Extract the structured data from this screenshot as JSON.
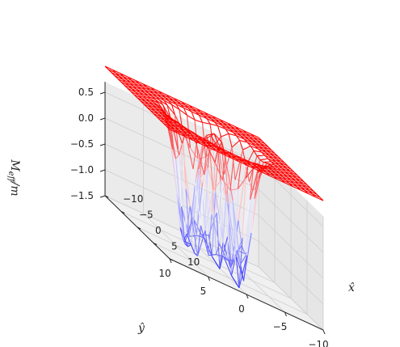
{
  "chart_data": {
    "type": "surface-3d-wireframe",
    "title": "",
    "xlabel": "x̂",
    "ylabel": "ŷ",
    "zlabel": "M_eff / m",
    "x_range": [
      -10,
      10
    ],
    "y_range": [
      -10,
      10
    ],
    "z_range": [
      -1.5,
      0.75
    ],
    "x_ticks": [
      -10,
      -5,
      0,
      5,
      10
    ],
    "y_ticks": [
      -10,
      -5,
      0,
      5,
      10
    ],
    "z_ticks": [
      -1.5,
      -1.0,
      -0.5,
      0.0,
      0.5
    ],
    "x_tick_labels": [
      "−10",
      "−5",
      "0",
      "5",
      "10"
    ],
    "y_tick_labels": [
      "−10",
      "−5",
      "0",
      "5",
      "10"
    ],
    "z_tick_labels": [
      "−1.5",
      "−1.0",
      "−0.5",
      "0.0",
      "0.5"
    ],
    "grid": true,
    "colormap": "bwr",
    "surface": {
      "description_of_values": "plateau at M_eff/m = 1 outside a ring; deep dip to about -1.5 near radius 3; small bump at centre",
      "grid_points_per_axis": 21,
      "outer_value": 1.0,
      "min_value": -1.5,
      "ring_radius": 3.5,
      "ring_width": 1.4,
      "center_value": 1.0
    },
    "colors": {
      "high": "#ff0000",
      "mid": "#f7f7ff",
      "low": "#3a3aff",
      "pane": "#f2f2f2",
      "grid": "#cfcfcf"
    }
  }
}
